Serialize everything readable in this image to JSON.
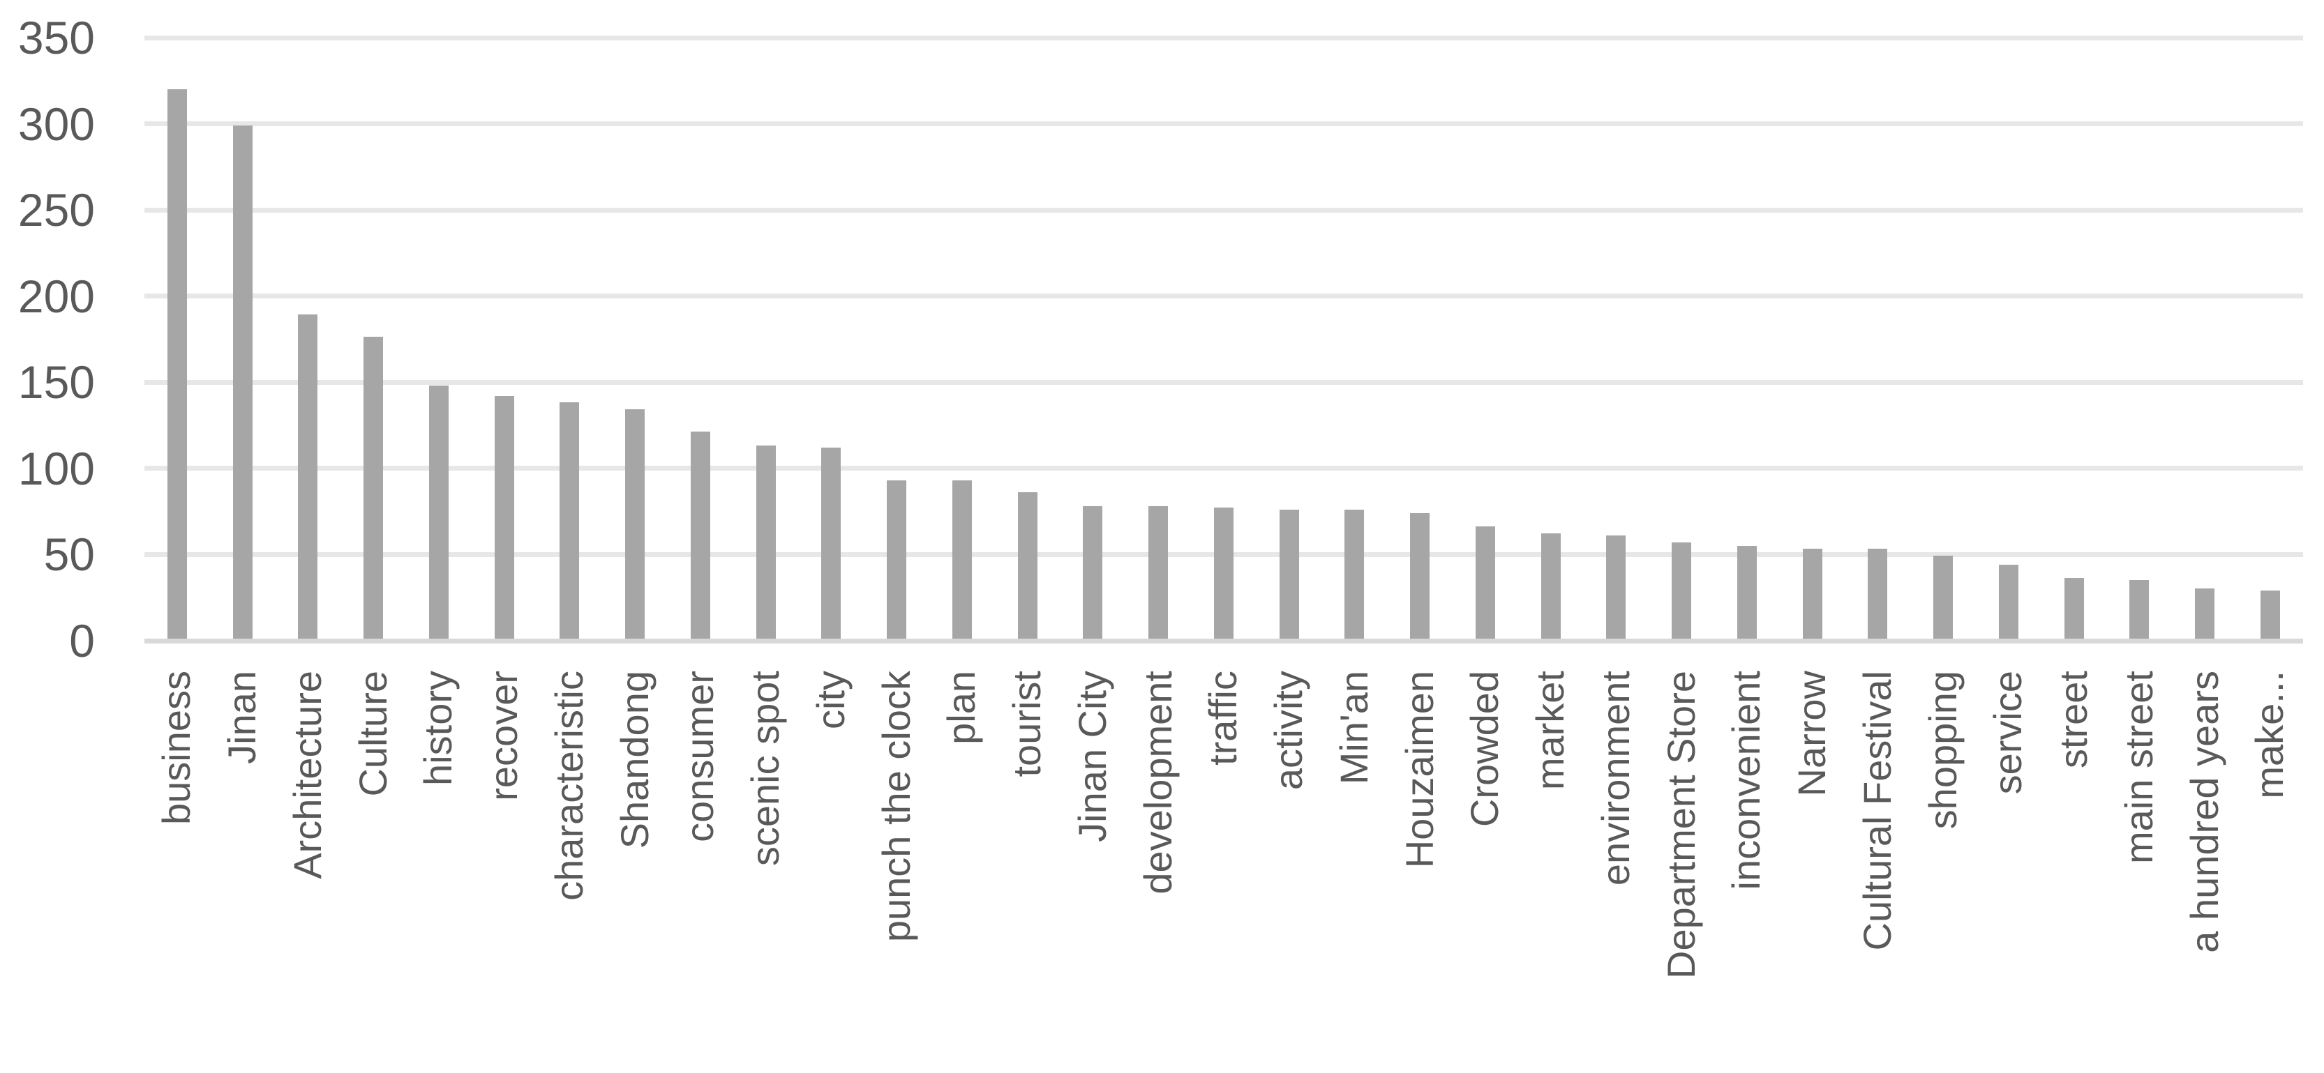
{
  "chart_data": {
    "type": "bar",
    "categories": [
      "business",
      "Jinan",
      "Architecture",
      "Culture",
      "history",
      "recover",
      "characteristic",
      "Shandong",
      "consumer",
      "scenic spot",
      "city",
      "punch the clock",
      "plan",
      "tourist",
      "Jinan City",
      "development",
      "traffic",
      "activity",
      "Min'an",
      "Houzaimen",
      "Crowded",
      "market",
      "environment",
      "Department Store",
      "inconvenient",
      "Narrow",
      "Cultural Festival",
      "shopping",
      "service",
      "street",
      "main street",
      "a hundred years",
      "make..."
    ],
    "values": [
      319,
      298,
      188,
      175,
      147,
      141,
      137,
      133,
      120,
      112,
      111,
      92,
      92,
      85,
      77,
      77,
      76,
      75,
      75,
      73,
      65,
      61,
      60,
      56,
      54,
      52,
      52,
      48,
      43,
      35,
      34,
      29,
      28
    ],
    "ylim": [
      0,
      350
    ],
    "yticks": [
      350,
      300,
      250,
      200,
      150,
      100,
      50,
      0
    ],
    "ytick_step": 50,
    "grid": true,
    "legend": false,
    "xlabel_rotation_degrees": 90,
    "bar_color": "#a6a6a6",
    "gridline_color": "#e7e7e7",
    "axis_line_color": "#d9d9d9",
    "text_color": "#595959",
    "background_color": "#ffffff"
  }
}
